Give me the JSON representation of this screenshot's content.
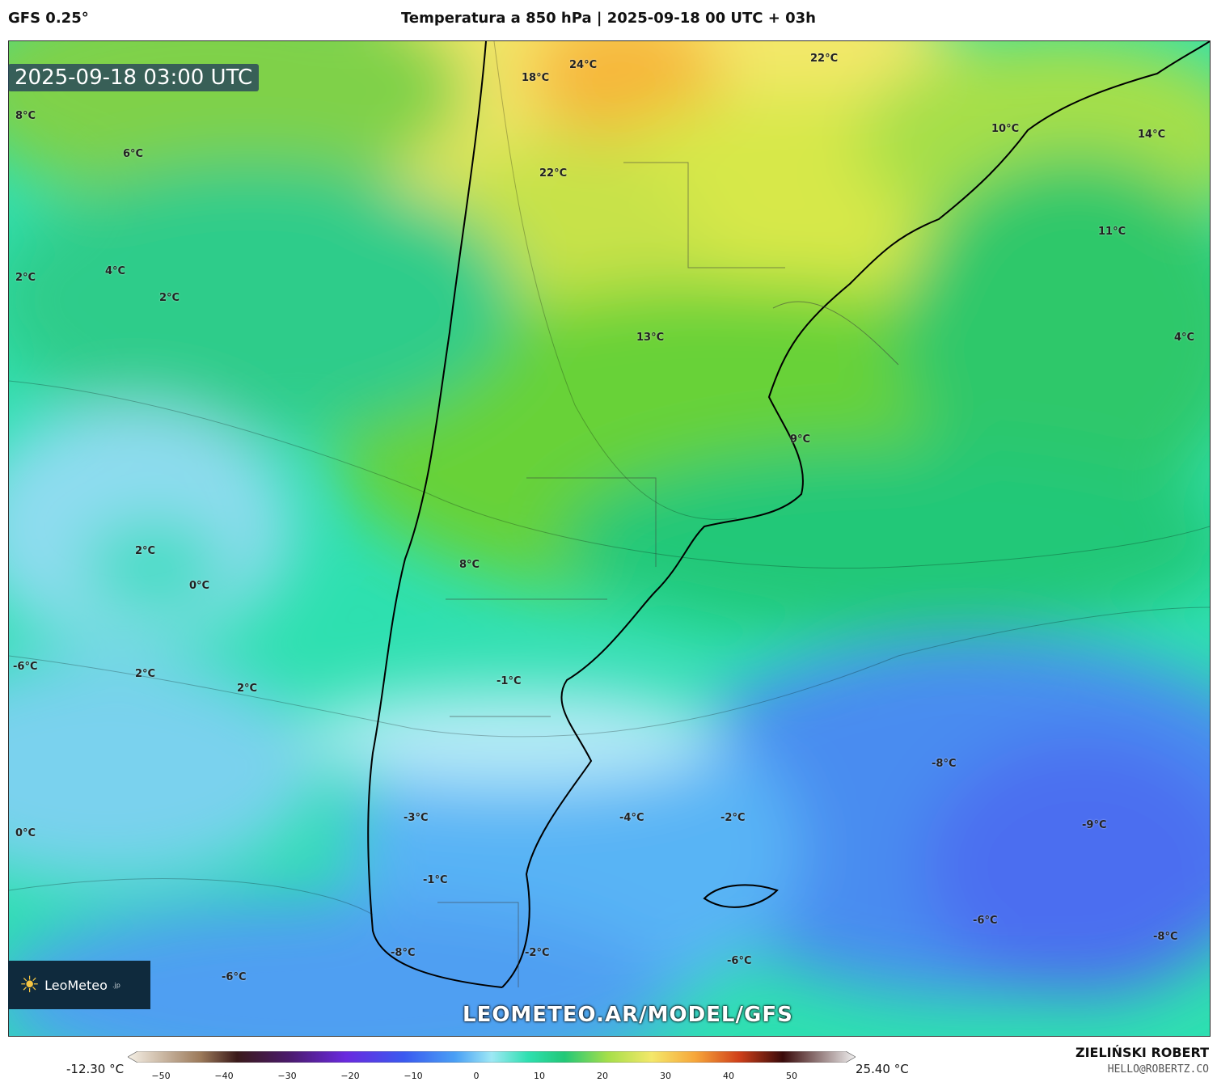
{
  "header": {
    "model": "GFS 0.25°",
    "title": "Temperatura a 850 hPa | 2025-09-18 00 UTC + 03h"
  },
  "map": {
    "timestamp": "2025-09-18 03:00 UTC",
    "labels": [
      {
        "text": "24°C"
      },
      {
        "text": "18°C"
      },
      {
        "text": "22°C"
      },
      {
        "text": "22°C"
      },
      {
        "text": "8°C"
      },
      {
        "text": "6°C"
      },
      {
        "text": "10°C"
      },
      {
        "text": "14°C"
      },
      {
        "text": "11°C"
      },
      {
        "text": "2°C"
      },
      {
        "text": "4°C"
      },
      {
        "text": "2°C"
      },
      {
        "text": "13°C"
      },
      {
        "text": "4°C"
      },
      {
        "text": "9°C"
      },
      {
        "text": "2°C"
      },
      {
        "text": "0°C"
      },
      {
        "text": "8°C"
      },
      {
        "text": "-6°C"
      },
      {
        "text": "2°C"
      },
      {
        "text": "2°C"
      },
      {
        "text": "-1°C"
      },
      {
        "text": "-8°C"
      },
      {
        "text": "-3°C"
      },
      {
        "text": "-4°C"
      },
      {
        "text": "-2°C"
      },
      {
        "text": "-9°C"
      },
      {
        "text": "0°C"
      },
      {
        "text": "-1°C"
      },
      {
        "text": "-6°C"
      },
      {
        "text": "-8°C"
      },
      {
        "text": "-8°C"
      },
      {
        "text": "-2°C"
      },
      {
        "text": "-6°C"
      },
      {
        "text": "-6°C"
      }
    ],
    "logo": {
      "brand": "LeoMeteo",
      "suffix": ".jp",
      "icon": "sun-icon"
    },
    "url": "LEOMETEO.AR/MODEL/GFS"
  },
  "colorbar": {
    "min_label": "-12.30 °C",
    "max_label": "25.40 °C",
    "ticks": [
      "−50",
      "−40",
      "−30",
      "−20",
      "−10",
      "0",
      "10",
      "20",
      "30",
      "40",
      "50"
    ]
  },
  "credits": {
    "author": "ZIELIŃSKI ROBERT",
    "email": "HELLO@ROBERTZ.CO"
  }
}
